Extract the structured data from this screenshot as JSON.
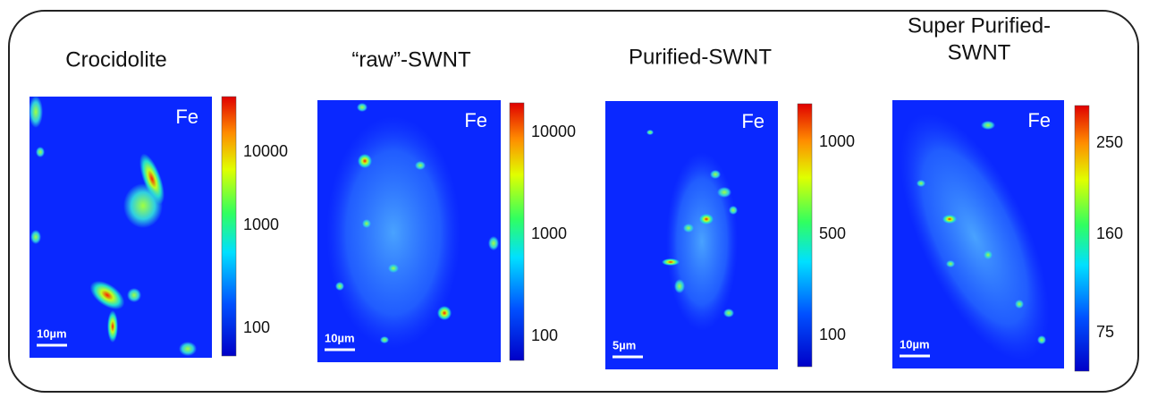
{
  "panels": [
    {
      "title": [
        "Crocidolite"
      ],
      "element": "Fe",
      "colorbar_labels": [
        "10000",
        "1000",
        "100"
      ],
      "scale_bar": "10µm"
    },
    {
      "title": [
        "“raw”-SWNT"
      ],
      "element": "Fe",
      "colorbar_labels": [
        "10000",
        "1000",
        "100"
      ],
      "scale_bar": "10µm"
    },
    {
      "title": [
        "Purified-SWNT"
      ],
      "element": "Fe",
      "colorbar_labels": [
        "1000",
        "500",
        "100"
      ],
      "scale_bar": "5µm"
    },
    {
      "title": [
        "Super Purified-",
        "SWNT"
      ],
      "element": "Fe",
      "colorbar_labels": [
        "250",
        "160",
        "75"
      ],
      "scale_bar": "10µm"
    }
  ]
}
